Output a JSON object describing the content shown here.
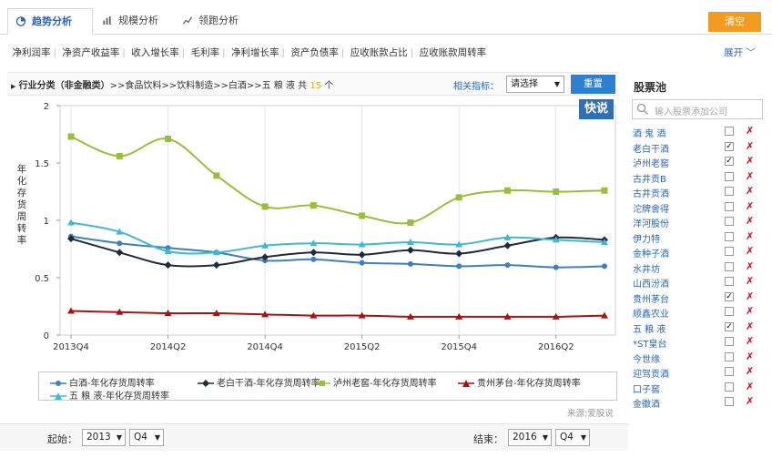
{
  "tabs": [
    {
      "label": "趋势分析",
      "icon": "pie-chart-icon",
      "active": true
    },
    {
      "label": "规模分析",
      "icon": "bar-chart-icon",
      "active": false
    },
    {
      "label": "领跑分析",
      "icon": "line-chart-icon",
      "active": false
    }
  ],
  "clear_label": "清空",
  "metrics": [
    "净利润率",
    "净资产收益率",
    "收入增长率",
    "毛利率",
    "净利增长率",
    "资产负债率",
    "应收账款占比",
    "应收账款周转率"
  ],
  "expand_label": "展开",
  "breadcrumb": {
    "prefix": "行业分类（非金融类）",
    "path": ">>食品饮料>>饮料制造>>白酒>>五 粮 液",
    "count_prefix": "共",
    "count": "15",
    "count_suffix": "个"
  },
  "related_label": "相关指标：",
  "related_select": "请选择",
  "reset_label": "重置",
  "kuaishuo_label": "快说",
  "y_axis_label": "年化存货周转率",
  "source_label": "来源:爱股说",
  "start_label": "起始：",
  "start_year": "2013",
  "start_quarter": "Q4",
  "end_label": "结束：",
  "end_year": "2016",
  "end_quarter": "Q4",
  "colors": {
    "baijiu": "#3d7fc0",
    "laobaigan": "#1f2b3a",
    "luzhou": "#98bf3a",
    "guizhou": "#a41414",
    "wuliangye": "#42b8cf",
    "accent_blue": "#2f7fd0",
    "accent_orange": "#f39a21"
  },
  "chart_data": {
    "type": "line",
    "x": [
      "2013Q4",
      "2014Q1",
      "2014Q2",
      "2014Q3",
      "2014Q4",
      "2015Q1",
      "2015Q2",
      "2015Q3",
      "2015Q4",
      "2016Q1",
      "2016Q2",
      "2016Q3"
    ],
    "x_tick_labels": [
      "2013Q4",
      "2014Q2",
      "2014Q4",
      "2015Q2",
      "2015Q4",
      "2016Q2"
    ],
    "y_ticks": [
      "0",
      "0.5",
      "1",
      "1.5",
      "2"
    ],
    "ylim": [
      0,
      2
    ],
    "ylabel": "年化存货周转率",
    "grid": "vertical",
    "legend": "bottom",
    "series": [
      {
        "name": "白酒-年化存货周转率",
        "marker": "circle",
        "values": [
          0.86,
          0.8,
          0.76,
          0.72,
          0.65,
          0.66,
          0.63,
          0.62,
          0.6,
          0.61,
          0.59,
          0.6
        ]
      },
      {
        "name": "老白干酒-年化存货周转率",
        "marker": "diamond",
        "values": [
          0.84,
          0.72,
          0.61,
          0.61,
          0.68,
          0.72,
          0.7,
          0.74,
          0.71,
          0.78,
          0.85,
          0.83
        ]
      },
      {
        "name": "泸州老窖-年化存货周转率",
        "marker": "square",
        "values": [
          1.73,
          1.56,
          1.71,
          1.39,
          1.12,
          1.13,
          1.04,
          0.98,
          1.2,
          1.26,
          1.25,
          1.26
        ]
      },
      {
        "name": "贵州茅台-年化存货周转率",
        "marker": "triangle",
        "values": [
          0.21,
          0.2,
          0.19,
          0.19,
          0.18,
          0.17,
          0.17,
          0.16,
          0.16,
          0.16,
          0.16,
          0.17
        ]
      },
      {
        "name": "五 粮 液-年化存货周转率",
        "marker": "triangle",
        "values": [
          0.98,
          0.9,
          0.73,
          0.72,
          0.78,
          0.8,
          0.79,
          0.81,
          0.79,
          0.85,
          0.83,
          0.81
        ]
      }
    ]
  },
  "pool": {
    "title": "股票池",
    "search_placeholder": "输入股票添加公司",
    "search_icon": "search-icon",
    "items": [
      {
        "name": "酒 鬼 酒",
        "checked": false
      },
      {
        "name": "老白干酒",
        "checked": true
      },
      {
        "name": "泸州老窖",
        "checked": true
      },
      {
        "name": "古井贡B",
        "checked": false
      },
      {
        "name": "古井贡酒",
        "checked": false
      },
      {
        "name": "沱牌舍得",
        "checked": false
      },
      {
        "name": "洋河股份",
        "checked": false
      },
      {
        "name": "伊力特",
        "checked": false
      },
      {
        "name": "金种子酒",
        "checked": false
      },
      {
        "name": "水井坊",
        "checked": false
      },
      {
        "name": "山西汾酒",
        "checked": false
      },
      {
        "name": "贵州茅台",
        "checked": true
      },
      {
        "name": "顺鑫农业",
        "checked": false
      },
      {
        "name": "五 粮 液",
        "checked": true
      },
      {
        "name": "*ST皇台",
        "checked": false
      },
      {
        "name": "今世缘",
        "checked": false
      },
      {
        "name": "迎驾贡酒",
        "checked": false
      },
      {
        "name": "口子窖",
        "checked": false
      },
      {
        "name": "金徽酒",
        "checked": false
      }
    ]
  }
}
